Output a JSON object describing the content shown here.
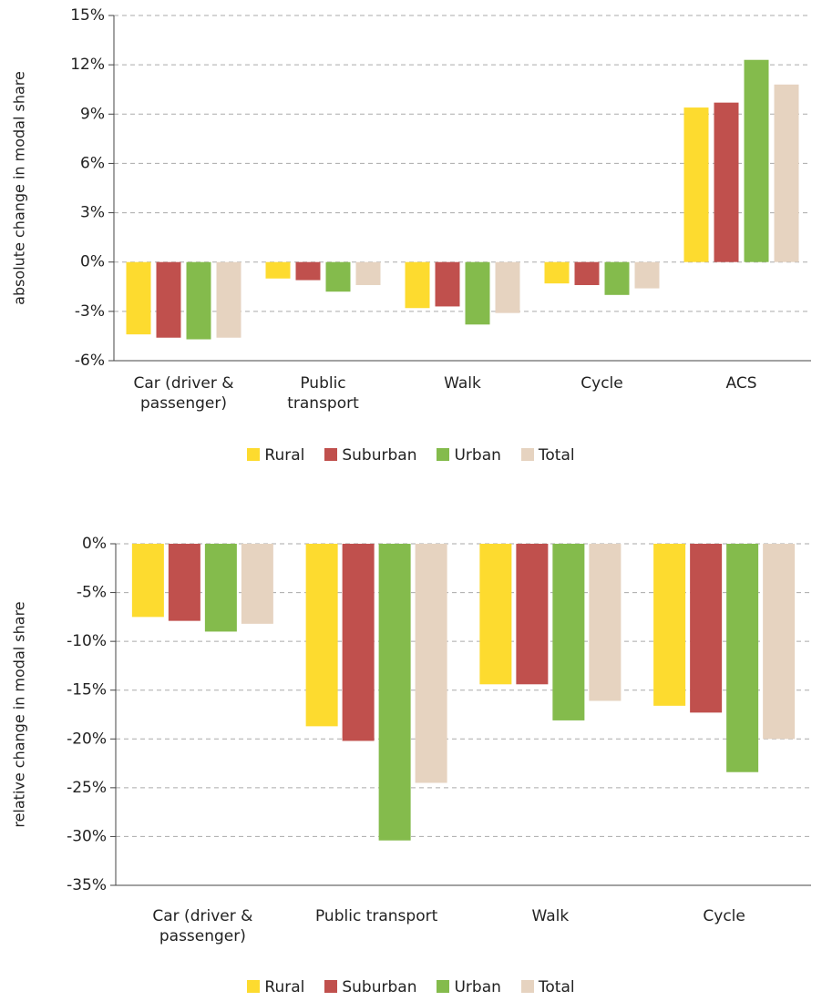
{
  "chart_data": [
    {
      "type": "bar",
      "y_label": "absolute change in modal share",
      "categories": [
        "Car (driver & passenger)",
        "Public transport",
        "Walk",
        "Cycle",
        "ACS"
      ],
      "series": [
        {
          "name": "Rural",
          "color": "#fddb2f",
          "values": [
            -4.4,
            -1.0,
            -2.8,
            -1.3,
            9.4
          ]
        },
        {
          "name": "Suburban",
          "color": "#c0504d",
          "values": [
            -4.6,
            -1.1,
            -2.7,
            -1.4,
            9.7
          ]
        },
        {
          "name": "Urban",
          "color": "#84bb4c",
          "values": [
            -4.7,
            -1.8,
            -3.8,
            -2.0,
            12.3
          ]
        },
        {
          "name": "Total",
          "color": "#e6d3c0",
          "values": [
            -4.6,
            -1.4,
            -3.1,
            -1.6,
            10.8
          ]
        }
      ],
      "ylim": [
        -6,
        15
      ],
      "yticks": [
        {
          "value": -6,
          "label": "-6%"
        },
        {
          "value": -3,
          "label": "-3%"
        },
        {
          "value": 0,
          "label": "0%"
        },
        {
          "value": 3,
          "label": "3%"
        },
        {
          "value": 6,
          "label": "6%"
        },
        {
          "value": 9,
          "label": "9%"
        },
        {
          "value": 12,
          "label": "12%"
        },
        {
          "value": 15,
          "label": "15%"
        }
      ],
      "grid": true,
      "legend": "bottom"
    },
    {
      "type": "bar",
      "y_label": "relative change in modal share",
      "categories": [
        "Car (driver & passenger)",
        "Public transport",
        "Walk",
        "Cycle"
      ],
      "series": [
        {
          "name": "Rural",
          "color": "#fddb2f",
          "values": [
            -7.5,
            -18.7,
            -14.4,
            -16.6
          ]
        },
        {
          "name": "Suburban",
          "color": "#c0504d",
          "values": [
            -7.9,
            -20.2,
            -14.4,
            -17.3
          ]
        },
        {
          "name": "Urban",
          "color": "#84bb4c",
          "values": [
            -9.0,
            -30.4,
            -18.1,
            -23.4
          ]
        },
        {
          "name": "Total",
          "color": "#e6d3c0",
          "values": [
            -8.2,
            -24.5,
            -16.1,
            -20.0
          ]
        }
      ],
      "ylim": [
        -35,
        0
      ],
      "yticks": [
        {
          "value": -35,
          "label": "-35%"
        },
        {
          "value": -30,
          "label": "-30%"
        },
        {
          "value": -25,
          "label": "-25%"
        },
        {
          "value": -20,
          "label": "-20%"
        },
        {
          "value": -15,
          "label": "-15%"
        },
        {
          "value": -10,
          "label": "-10%"
        },
        {
          "value": -5,
          "label": "-5%"
        },
        {
          "value": 0,
          "label": "0%"
        }
      ],
      "grid": true,
      "legend": "bottom"
    }
  ]
}
